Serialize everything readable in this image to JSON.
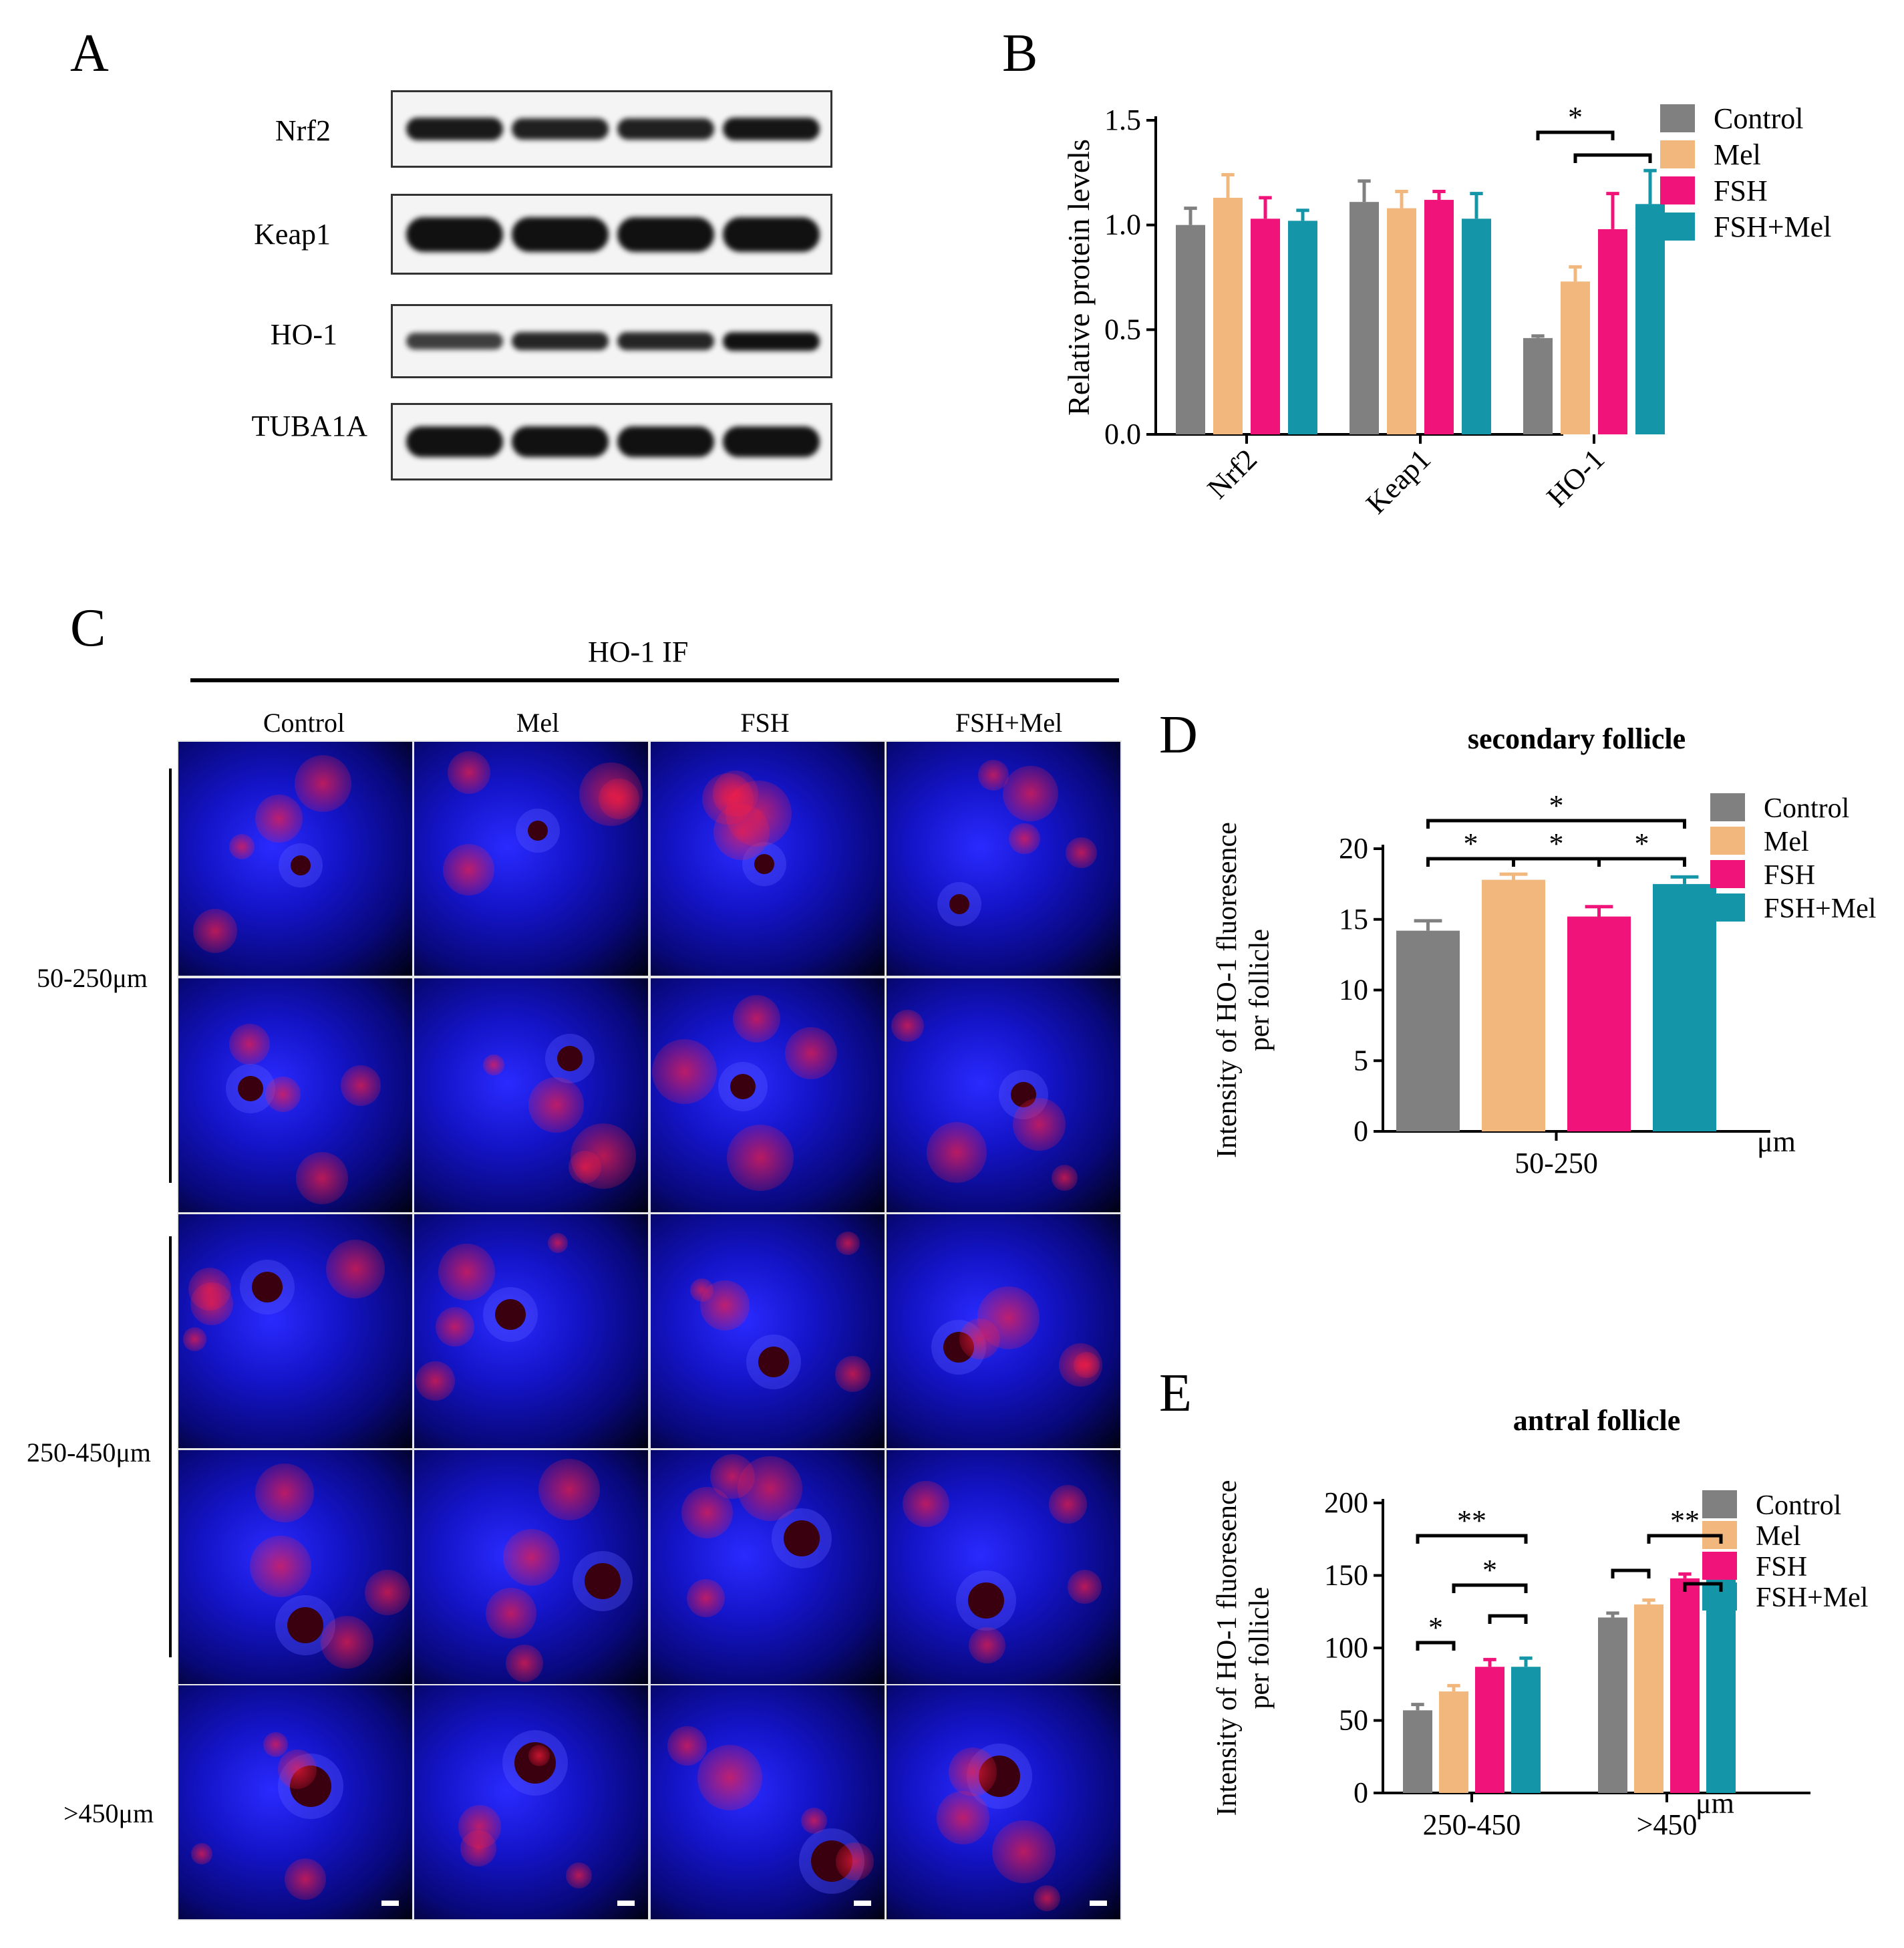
{
  "panels": {
    "A": "A",
    "B": "B",
    "C": "C",
    "D": "D",
    "E": "E"
  },
  "blot": {
    "rows": [
      "Nrf2",
      "Keap1",
      "HO-1",
      "TUBA1A"
    ]
  },
  "if_panel": {
    "title": "HO-1  IF",
    "columns": [
      "Control",
      "Mel",
      "FSH",
      "FSH+Mel"
    ],
    "row_groups": [
      "50-250μm",
      "250-450μm",
      ">450μm"
    ]
  },
  "groups": [
    {
      "name": "Control",
      "color": "#808080"
    },
    {
      "name": "Mel",
      "color": "#f2b77c"
    },
    {
      "name": "FSH",
      "color": "#f0147a"
    },
    {
      "name": "FSH+Mel",
      "color": "#1595a8"
    }
  ],
  "chart_data": [
    {
      "id": "B",
      "type": "bar",
      "title": "",
      "ylabel": "Relative protein levels",
      "xlabel": "",
      "ylim": [
        0,
        1.5
      ],
      "yticks": [
        "0.0",
        "0.5",
        "1.0",
        "1.5"
      ],
      "categories": [
        "Nrf2",
        "Keap1",
        "HO-1"
      ],
      "series": [
        {
          "name": "Control",
          "values": [
            1.0,
            1.11,
            0.46
          ],
          "errors": [
            0.08,
            0.1,
            0.01
          ]
        },
        {
          "name": "Mel",
          "values": [
            1.13,
            1.08,
            0.73
          ],
          "errors": [
            0.11,
            0.08,
            0.07
          ]
        },
        {
          "name": "FSH",
          "values": [
            1.03,
            1.12,
            0.98
          ],
          "errors": [
            0.1,
            0.04,
            0.17
          ]
        },
        {
          "name": "FSH+Mel",
          "values": [
            1.02,
            1.03,
            1.1
          ],
          "errors": [
            0.05,
            0.12,
            0.16
          ]
        }
      ],
      "significance": [
        "*"
      ],
      "legend": "right"
    },
    {
      "id": "D",
      "type": "bar",
      "title": "secondary follicle",
      "ylabel": "Intensity of HO-1 fluoresence per follicle",
      "xlabel": "",
      "unit": "μm",
      "ylim": [
        0,
        20
      ],
      "yticks": [
        "0",
        "5",
        "10",
        "15",
        "20"
      ],
      "categories": [
        "50-250"
      ],
      "series": [
        {
          "name": "Control",
          "values": [
            14.2
          ],
          "errors": [
            0.7
          ]
        },
        {
          "name": "Mel",
          "values": [
            17.8
          ],
          "errors": [
            0.4
          ]
        },
        {
          "name": "FSH",
          "values": [
            15.2
          ],
          "errors": [
            0.7
          ]
        },
        {
          "name": "FSH+Mel",
          "values": [
            17.5
          ],
          "errors": [
            0.5
          ]
        }
      ],
      "significance": [
        "*",
        "*",
        "*",
        "*"
      ],
      "legend": "right"
    },
    {
      "id": "E",
      "type": "bar",
      "title": "antral follicle",
      "ylabel": "Intensity of HO-1 fluoresence per follicle",
      "xlabel": "",
      "unit": "μm",
      "ylim": [
        0,
        200
      ],
      "yticks": [
        "0",
        "50",
        "100",
        "150",
        "200"
      ],
      "categories": [
        "250-450",
        ">450"
      ],
      "series": [
        {
          "name": "Control",
          "values": [
            57,
            121
          ],
          "errors": [
            4,
            3
          ]
        },
        {
          "name": "Mel",
          "values": [
            70,
            130
          ],
          "errors": [
            4,
            3
          ]
        },
        {
          "name": "FSH",
          "values": [
            87,
            148
          ],
          "errors": [
            5,
            3
          ]
        },
        {
          "name": "FSH+Mel",
          "values": [
            87,
            155
          ],
          "errors": [
            6,
            2
          ]
        }
      ],
      "significance": [
        "**",
        "*",
        "*",
        "**"
      ],
      "legend": "right"
    }
  ]
}
